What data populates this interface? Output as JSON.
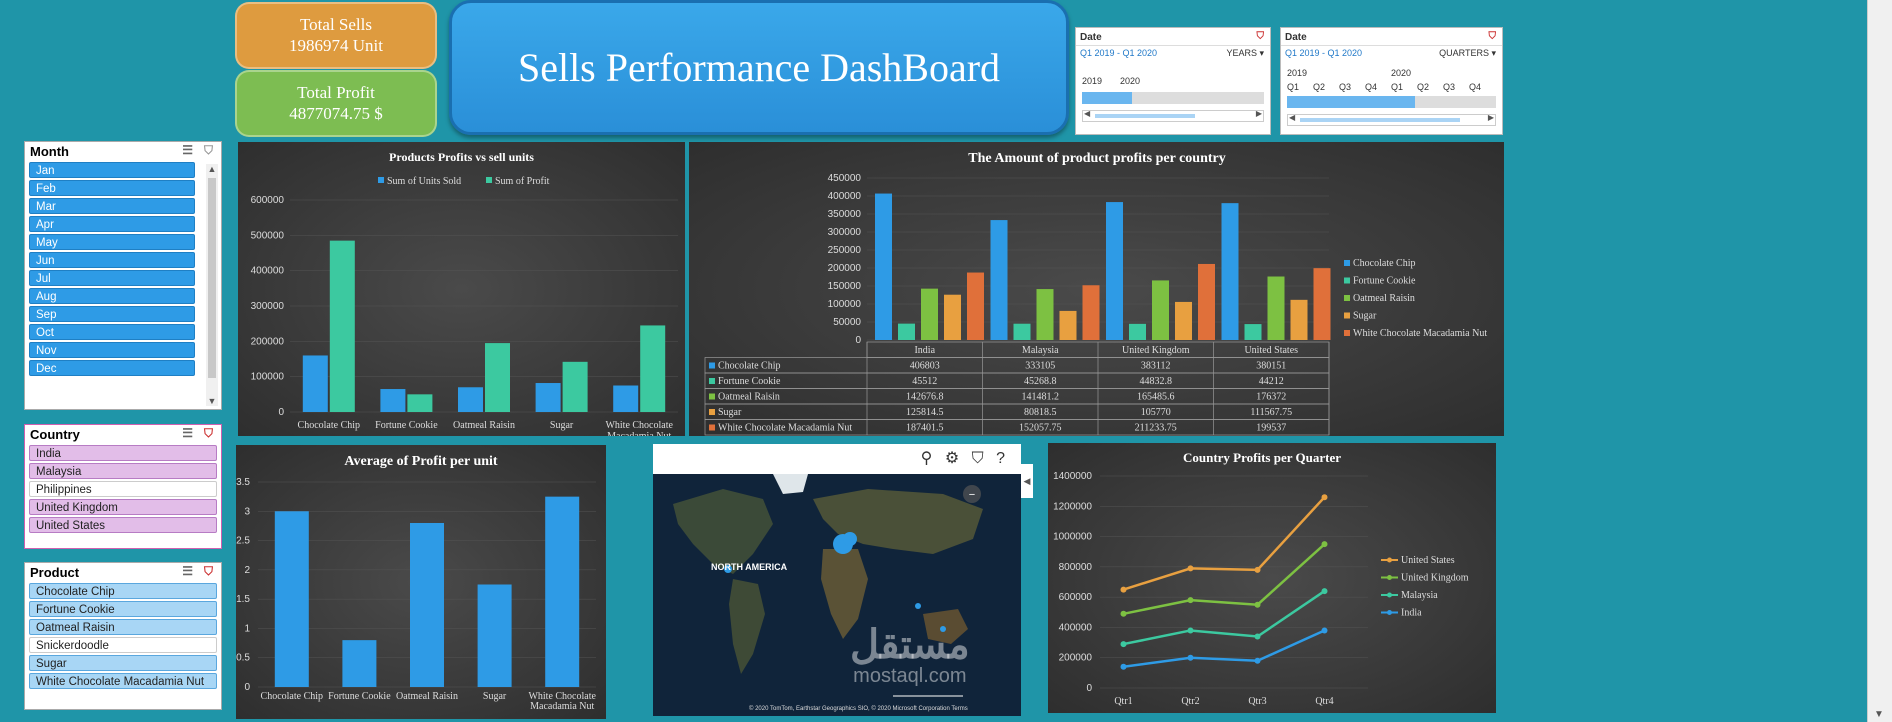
{
  "kpis": {
    "total_sells_label": "Total Sells",
    "total_sells_value": "1986974 Unit",
    "total_profit_label": "Total Profit",
    "total_profit_value": "4877074.75 $"
  },
  "dashboard_title": "Sells Performance DashBoard",
  "timeline_years": {
    "title": "Date",
    "range": "Q1 2019 - Q1 2020",
    "level": "YEARS",
    "labels": [
      "2019",
      "2020"
    ]
  },
  "timeline_quarters": {
    "title": "Date",
    "range": "Q1 2019 - Q1 2020",
    "level": "QUARTERS",
    "year_labels": [
      "2019",
      "2020"
    ],
    "quarters": [
      "Q1",
      "Q2",
      "Q3",
      "Q4",
      "Q1",
      "Q2",
      "Q3",
      "Q4"
    ]
  },
  "slicers": {
    "month": {
      "title": "Month",
      "items": [
        "Jan",
        "Feb",
        "Mar",
        "Apr",
        "May",
        "Jun",
        "Jul",
        "Aug",
        "Sep",
        "Oct",
        "Nov",
        "Dec"
      ]
    },
    "country": {
      "title": "Country",
      "items": [
        "India",
        "Malaysia",
        "Philippines",
        "United Kingdom",
        "United States"
      ],
      "selected": [
        true,
        true,
        false,
        true,
        true
      ]
    },
    "product": {
      "title": "Product",
      "items": [
        "Chocolate Chip",
        "Fortune Cookie",
        "Oatmeal Raisin",
        "Snickerdoodle",
        "Sugar",
        "White Chocolate Macadamia Nut"
      ],
      "selected": [
        true,
        true,
        true,
        false,
        true,
        true
      ]
    }
  },
  "map": {
    "region_label": "NORTH AMERICA",
    "copyright": "© 2020 TomTom, Earthstar Geographics SIO, © 2020 Microsoft Corporation  Terms"
  },
  "watermark": {
    "arabic": "مستقل",
    "latin": "mostaql.com"
  },
  "colors": {
    "background": "#1f95a8",
    "blue": "#2e9be6",
    "teal": "#3cc9a0",
    "green": "#7dc142",
    "orange": "#e8a040",
    "red": "#e0703a",
    "kpi_orange": "#de9b3f",
    "kpi_green": "#7dbd52"
  },
  "chart_data": [
    {
      "id": "products-profits-vs-units",
      "type": "bar",
      "title": "Products Profits vs sell units",
      "categories": [
        "Chocolate Chip",
        "Fortune Cookie",
        "Oatmeal Raisin",
        "Sugar",
        "White Chocolate Macadamia Nut"
      ],
      "series": [
        {
          "name": "Sum of Units Sold",
          "values": [
            160000,
            65000,
            70000,
            82000,
            75000
          ]
        },
        {
          "name": "Sum of Profit",
          "values": [
            485000,
            50000,
            195000,
            142000,
            245000
          ]
        }
      ],
      "yticks": [
        0,
        100000,
        200000,
        300000,
        400000,
        500000,
        600000
      ],
      "ylim": [
        0,
        600000
      ],
      "legend": "top"
    },
    {
      "id": "profits-per-country",
      "type": "bar",
      "title": "The Amount of product profits per country",
      "categories": [
        "India",
        "Malaysia",
        "United Kingdom",
        "United States"
      ],
      "series": [
        {
          "name": "Chocolate Chip",
          "values": [
            406803,
            333105,
            383112,
            380151
          ],
          "labels": [
            "406803",
            "333105",
            "383112",
            "380151"
          ]
        },
        {
          "name": "Fortune Cookie",
          "values": [
            45512,
            45268.8,
            44832.8,
            44212
          ],
          "labels": [
            "45512",
            "45268.8",
            "44832.8",
            "44212"
          ]
        },
        {
          "name": "Oatmeal Raisin",
          "values": [
            142676.8,
            141481.2,
            165485.6,
            176372
          ],
          "labels": [
            "142676.8",
            "141481.2",
            "165485.6",
            "176372"
          ]
        },
        {
          "name": "Sugar",
          "values": [
            125814.5,
            80818.5,
            105770,
            111567.75
          ],
          "labels": [
            "125814.5",
            "80818.5",
            "105770",
            "111567.75"
          ]
        },
        {
          "name": "White Chocolate Macadamia Nut",
          "values": [
            187401.5,
            152057.75,
            211233.75,
            199537
          ],
          "labels": [
            "187401.5",
            "152057.75",
            "211233.75",
            "199537"
          ]
        }
      ],
      "yticks": [
        0,
        50000,
        100000,
        150000,
        200000,
        250000,
        300000,
        350000,
        400000,
        450000
      ],
      "ylim": [
        0,
        450000
      ],
      "legend": "right",
      "data_table": true
    },
    {
      "id": "avg-profit-per-unit",
      "type": "bar",
      "title": "Average of Profit per unit",
      "categories": [
        "Chocolate Chip",
        "Fortune Cookie",
        "Oatmeal Raisin",
        "Sugar",
        "White Chocolate Macadamia Nut"
      ],
      "values": [
        3,
        0.8,
        2.8,
        1.75,
        3.25
      ],
      "yticks": [
        "0",
        "0.5",
        "1",
        "1.5",
        "2",
        "2.5",
        "3",
        "3.5"
      ],
      "ylim": [
        0,
        3.5
      ]
    },
    {
      "id": "country-profits-per-quarter",
      "type": "line",
      "title": "Country Profits per Quarter",
      "categories": [
        "Qtr1",
        "Qtr2",
        "Qtr3",
        "Qtr4"
      ],
      "series": [
        {
          "name": "United States",
          "values": [
            650000,
            790000,
            780000,
            1260000
          ]
        },
        {
          "name": "United Kingdom",
          "values": [
            490000,
            580000,
            550000,
            950000
          ]
        },
        {
          "name": "Malaysia",
          "values": [
            290000,
            380000,
            340000,
            640000
          ]
        },
        {
          "name": "India",
          "values": [
            140000,
            200000,
            180000,
            380000
          ]
        }
      ],
      "yticks": [
        0,
        200000,
        400000,
        600000,
        800000,
        1000000,
        1200000,
        1400000
      ],
      "ylim": [
        0,
        1400000
      ],
      "legend": "right"
    }
  ]
}
